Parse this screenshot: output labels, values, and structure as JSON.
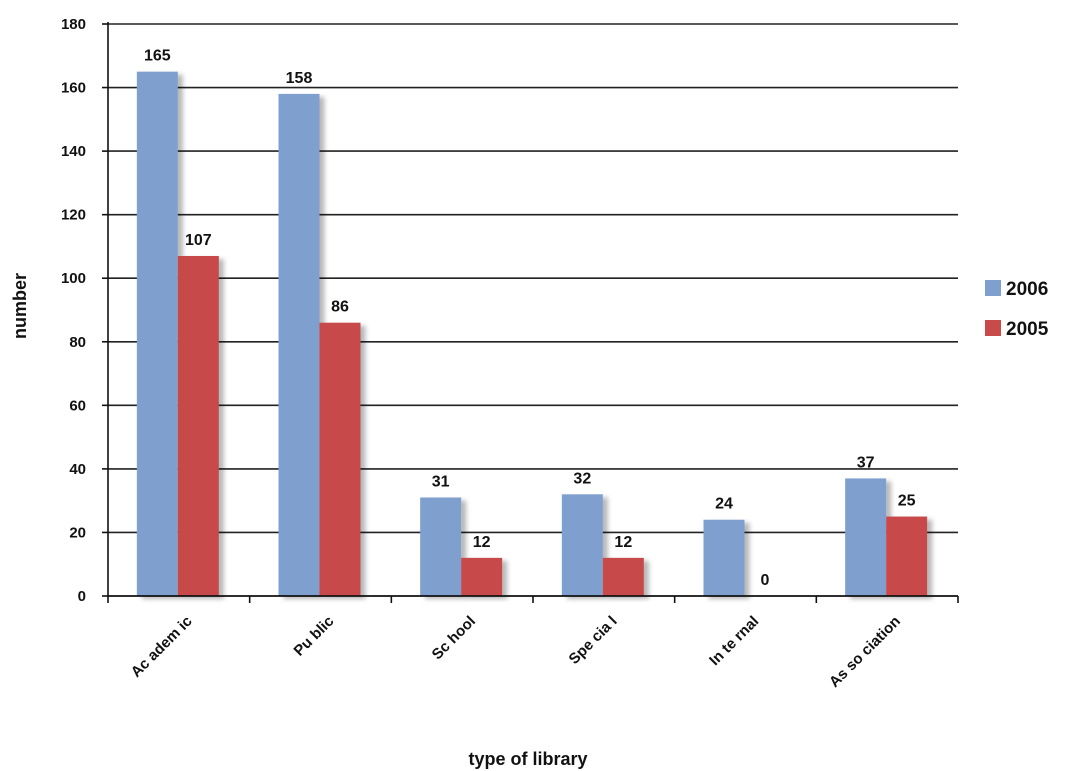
{
  "chart_data": {
    "type": "bar",
    "title": "",
    "xlabel": "type of library",
    "ylabel": "number",
    "ylim": [
      0,
      180
    ],
    "yticks": [
      0,
      20,
      40,
      60,
      80,
      100,
      120,
      140,
      160,
      180
    ],
    "grid": true,
    "legend_position": "right",
    "categories": [
      "Academic",
      "Public",
      "School",
      "Special",
      "Internal",
      "Association"
    ],
    "category_labels": [
      "Ac adem ic",
      "Pu blic",
      "Sc hool",
      "Spe cia l",
      "In te rnal",
      "As so ciation"
    ],
    "series": [
      {
        "name": "2006",
        "color": "#7f9fcf",
        "values": [
          165,
          158,
          31,
          32,
          24,
          37
        ]
      },
      {
        "name": "2005",
        "color": "#c84a4a",
        "values": [
          107,
          86,
          12,
          12,
          0,
          25
        ]
      }
    ]
  }
}
